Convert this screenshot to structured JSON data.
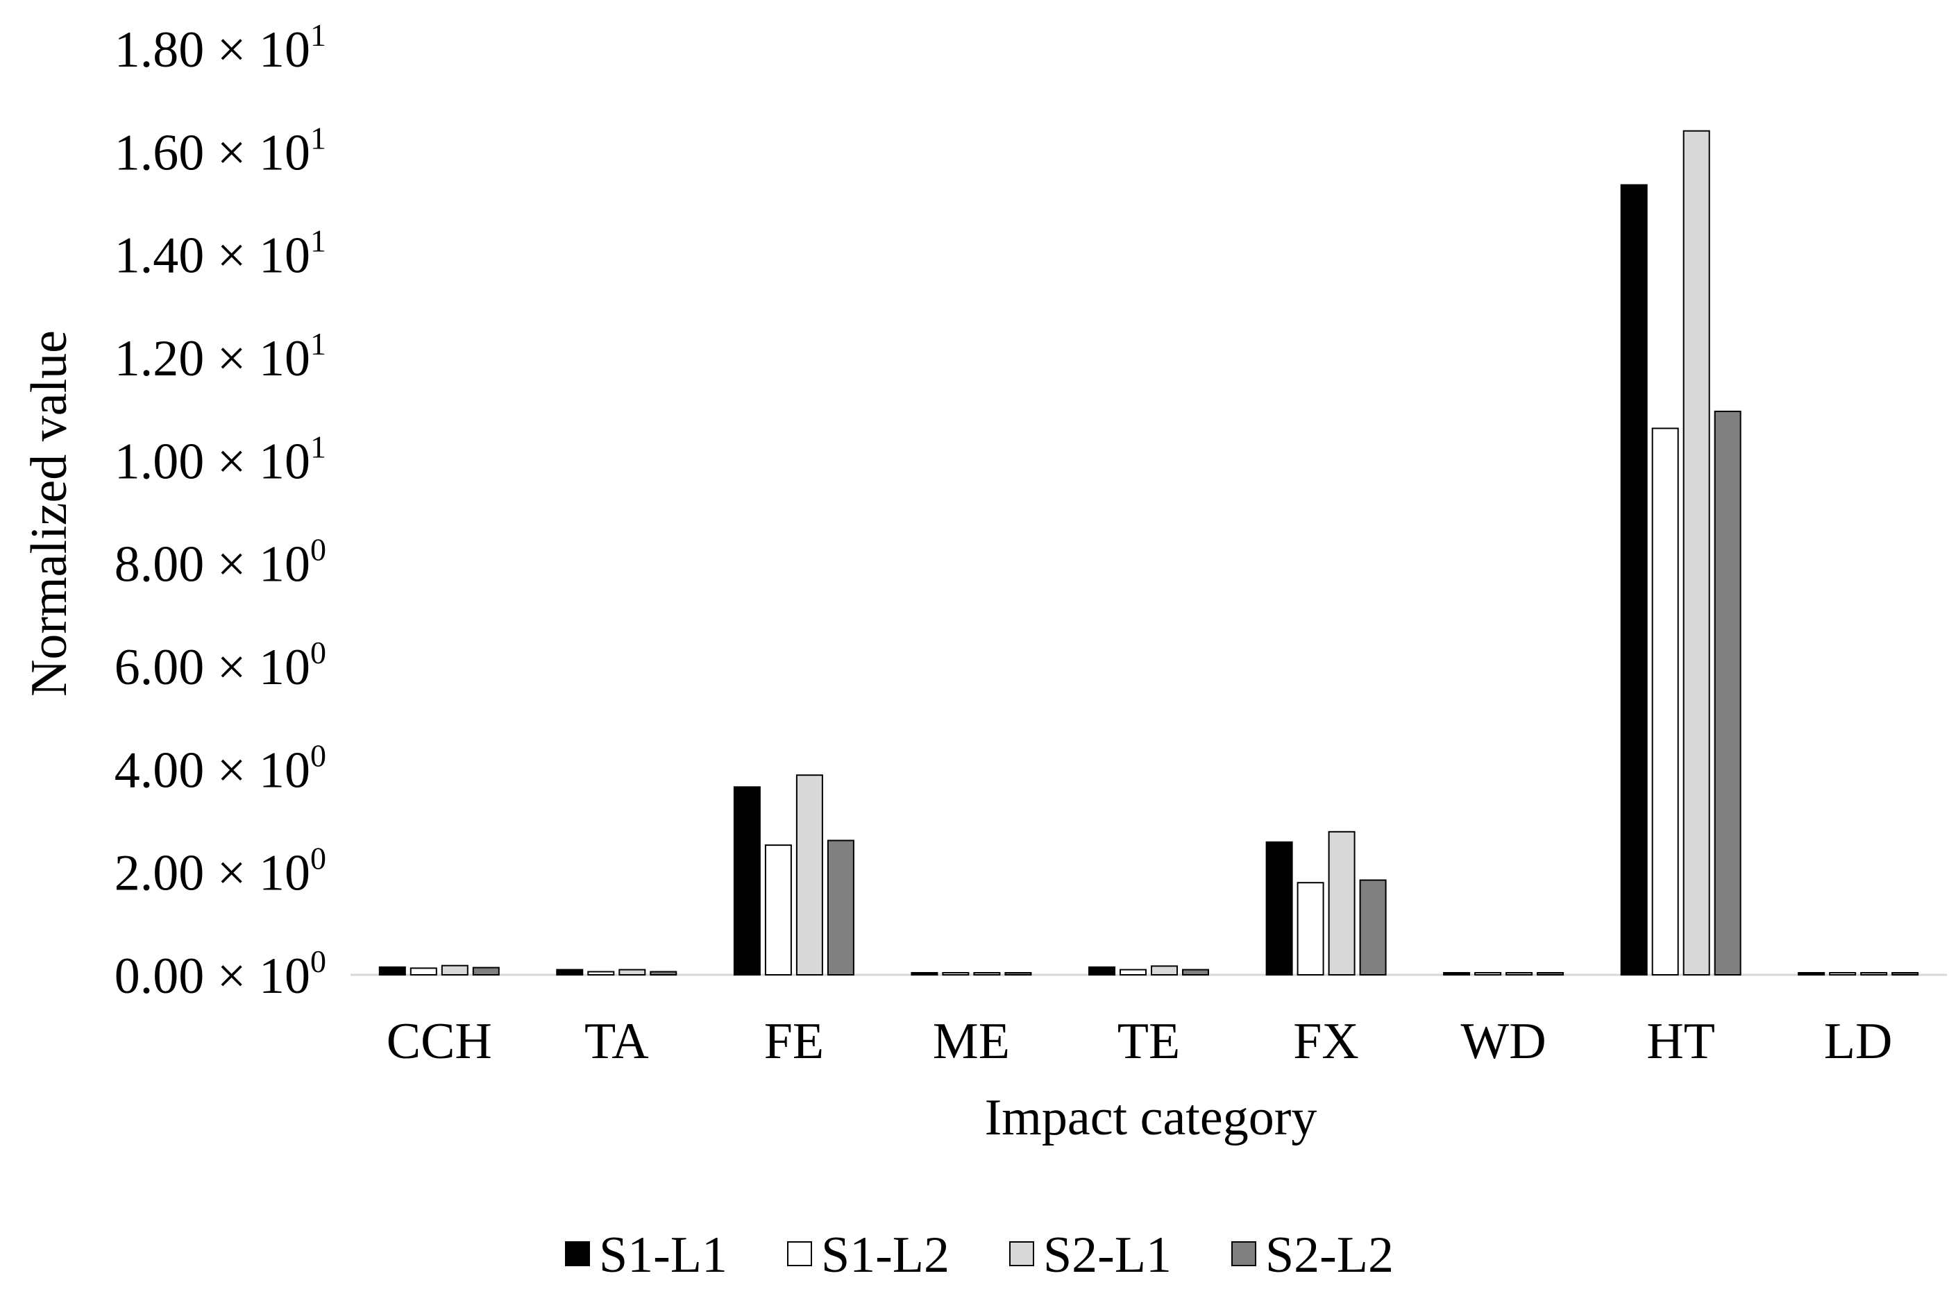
{
  "chart_data": {
    "type": "bar",
    "title": "",
    "xlabel": "Impact category",
    "ylabel": "Normalized value",
    "categories": [
      "CCH",
      "TA",
      "FE",
      "ME",
      "TE",
      "FX",
      "WD",
      "HT",
      "LD"
    ],
    "ylim": [
      0,
      18
    ],
    "yticks": [
      {
        "value": 0,
        "mantissa": "0.00",
        "exponent": "0"
      },
      {
        "value": 2,
        "mantissa": "2.00",
        "exponent": "0"
      },
      {
        "value": 4,
        "mantissa": "4.00",
        "exponent": "0"
      },
      {
        "value": 6,
        "mantissa": "6.00",
        "exponent": "0"
      },
      {
        "value": 8,
        "mantissa": "8.00",
        "exponent": "0"
      },
      {
        "value": 10,
        "mantissa": "1.00",
        "exponent": "1"
      },
      {
        "value": 12,
        "mantissa": "1.20",
        "exponent": "1"
      },
      {
        "value": 14,
        "mantissa": "1.40",
        "exponent": "1"
      },
      {
        "value": 16,
        "mantissa": "1.60",
        "exponent": "1"
      },
      {
        "value": 18,
        "mantissa": "1.80",
        "exponent": "1"
      }
    ],
    "tick_times": "× 10",
    "grid": false,
    "legend_position": "bottom",
    "series": [
      {
        "name": "S1-L1",
        "color": "#000000",
        "values": [
          0.15,
          0.1,
          3.65,
          0.03,
          0.15,
          2.58,
          0.03,
          15.35,
          0.03
        ]
      },
      {
        "name": "S1-L2",
        "color": "#ffffff",
        "values": [
          0.13,
          0.06,
          2.52,
          0.03,
          0.1,
          1.79,
          0.03,
          10.62,
          0.03
        ]
      },
      {
        "name": "S2-L1",
        "color": "#d9d9d9",
        "values": [
          0.18,
          0.1,
          3.88,
          0.03,
          0.17,
          2.78,
          0.03,
          16.4,
          0.03
        ]
      },
      {
        "name": "S2-L2",
        "color": "#808080",
        "values": [
          0.14,
          0.06,
          2.61,
          0.03,
          0.1,
          1.84,
          0.03,
          10.95,
          0.03
        ]
      }
    ]
  }
}
